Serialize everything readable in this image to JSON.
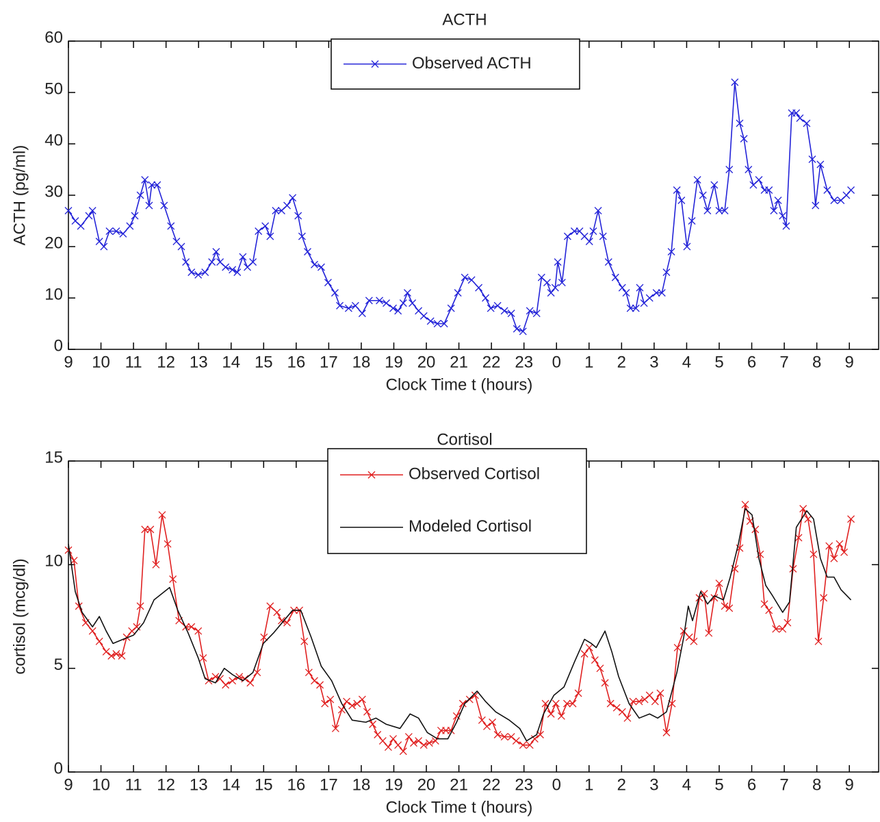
{
  "chart_data": [
    {
      "type": "line",
      "title": "ACTH",
      "xlabel": "Clock Time t (hours)",
      "ylabel": "ACTH (pg/ml)",
      "xlim": [
        0,
        24.9
      ],
      "ylim": [
        0,
        60
      ],
      "xticks": [
        {
          "value": 0,
          "label": "9"
        },
        {
          "value": 1,
          "label": "10"
        },
        {
          "value": 2,
          "label": "11"
        },
        {
          "value": 3,
          "label": "12"
        },
        {
          "value": 4,
          "label": "13"
        },
        {
          "value": 5,
          "label": "14"
        },
        {
          "value": 6,
          "label": "15"
        },
        {
          "value": 7,
          "label": "16"
        },
        {
          "value": 8,
          "label": "17"
        },
        {
          "value": 9,
          "label": "18"
        },
        {
          "value": 10,
          "label": "19"
        },
        {
          "value": 11,
          "label": "20"
        },
        {
          "value": 12,
          "label": "21"
        },
        {
          "value": 13,
          "label": "22"
        },
        {
          "value": 14,
          "label": "23"
        },
        {
          "value": 15,
          "label": "0"
        },
        {
          "value": 16,
          "label": "1"
        },
        {
          "value": 17,
          "label": "2"
        },
        {
          "value": 18,
          "label": "3"
        },
        {
          "value": 19,
          "label": "4"
        },
        {
          "value": 20,
          "label": "5"
        },
        {
          "value": 21,
          "label": "6"
        },
        {
          "value": 22,
          "label": "7"
        },
        {
          "value": 23,
          "label": "8"
        },
        {
          "value": 24,
          "label": "9"
        }
      ],
      "yticks": [
        0,
        10,
        20,
        30,
        40,
        50,
        60
      ],
      "series": [
        {
          "name": "Observed ACTH",
          "color": "#2323d8",
          "marker": "x",
          "x": [
            0,
            0.21,
            0.38,
            0.63,
            0.74,
            0.95,
            1.09,
            1.26,
            1.47,
            1.68,
            1.89,
            2.04,
            2.21,
            2.35,
            2.48,
            2.56,
            2.73,
            2.94,
            3.15,
            3.32,
            3.47,
            3.61,
            3.78,
            3.99,
            4.2,
            4.41,
            4.54,
            4.66,
            4.83,
            5.04,
            5.19,
            5.36,
            5.5,
            5.67,
            5.84,
            6.05,
            6.2,
            6.37,
            6.55,
            6.72,
            6.89,
            7.06,
            7.18,
            7.35,
            7.56,
            7.77,
            7.98,
            8.19,
            8.34,
            8.61,
            8.82,
            9.03,
            9.24,
            9.56,
            9.77,
            9.98,
            10.13,
            10.29,
            10.42,
            10.57,
            10.76,
            10.92,
            11.13,
            11.34,
            11.55,
            11.76,
            11.97,
            12.18,
            12.39,
            12.61,
            12.82,
            12.98,
            13.19,
            13.4,
            13.61,
            13.78,
            13.97,
            14.18,
            14.39,
            14.54,
            14.71,
            14.83,
            14.96,
            15.04,
            15.17,
            15.34,
            15.55,
            15.71,
            15.86,
            16.01,
            16.13,
            16.28,
            16.43,
            16.6,
            16.81,
            17.02,
            17.14,
            17.27,
            17.44,
            17.56,
            17.69,
            17.86,
            18.07,
            18.24,
            18.38,
            18.53,
            18.7,
            18.84,
            19.01,
            19.16,
            19.33,
            19.5,
            19.64,
            19.85,
            20,
            20.17,
            20.31,
            20.48,
            20.63,
            20.76,
            20.9,
            21.05,
            21.22,
            21.39,
            21.53,
            21.68,
            21.81,
            21.95,
            22.06,
            22.23,
            22.37,
            22.48,
            22.69,
            22.86,
            22.96,
            23.11,
            23.32,
            23.53,
            23.74,
            23.91,
            24.05
          ],
          "values": [
            27,
            25,
            24,
            26,
            27,
            21,
            20,
            23,
            23,
            22.5,
            24,
            26,
            30,
            33,
            28,
            32,
            32,
            28,
            24,
            21,
            20,
            17,
            15,
            14.5,
            15,
            17,
            19,
            17,
            16,
            15.5,
            15,
            18,
            16,
            17,
            23,
            24,
            22,
            27,
            27,
            28,
            29.5,
            26,
            22,
            19,
            16.5,
            16,
            13,
            11,
            8.5,
            8,
            8.5,
            7,
            9.5,
            9.5,
            9,
            8,
            7.5,
            9,
            11,
            9,
            7.5,
            6.5,
            5.5,
            5,
            5,
            8,
            11,
            14,
            13.5,
            12,
            10,
            8,
            8.5,
            7.5,
            7,
            4,
            3.5,
            7.5,
            7,
            14,
            13,
            11,
            12,
            17,
            13,
            22,
            23,
            23,
            22,
            21,
            23,
            27,
            22,
            17,
            14,
            12,
            11,
            8,
            8,
            12,
            9,
            10,
            11,
            11,
            15,
            19,
            31,
            29,
            20,
            25,
            33,
            30,
            27,
            32,
            27,
            27,
            35,
            52,
            44,
            41,
            35,
            32,
            33,
            31,
            31,
            27,
            29,
            26,
            24,
            46,
            46,
            45,
            44,
            37,
            28,
            36,
            31,
            29,
            29,
            30,
            31
          ]
        }
      ]
    },
    {
      "type": "line",
      "title": "Cortisol",
      "xlabel": "Clock Time t (hours)",
      "ylabel": "cortisol (mcg/dl)",
      "xlim": [
        0,
        24.9
      ],
      "ylim": [
        0,
        15
      ],
      "xticks": [
        {
          "value": 0,
          "label": "9"
        },
        {
          "value": 1,
          "label": "10"
        },
        {
          "value": 2,
          "label": "11"
        },
        {
          "value": 3,
          "label": "12"
        },
        {
          "value": 4,
          "label": "13"
        },
        {
          "value": 5,
          "label": "14"
        },
        {
          "value": 6,
          "label": "15"
        },
        {
          "value": 7,
          "label": "16"
        },
        {
          "value": 8,
          "label": "17"
        },
        {
          "value": 9,
          "label": "18"
        },
        {
          "value": 10,
          "label": "19"
        },
        {
          "value": 11,
          "label": "20"
        },
        {
          "value": 12,
          "label": "21"
        },
        {
          "value": 13,
          "label": "22"
        },
        {
          "value": 14,
          "label": "23"
        },
        {
          "value": 15,
          "label": "0"
        },
        {
          "value": 16,
          "label": "1"
        },
        {
          "value": 17,
          "label": "2"
        },
        {
          "value": 18,
          "label": "3"
        },
        {
          "value": 19,
          "label": "4"
        },
        {
          "value": 20,
          "label": "5"
        },
        {
          "value": 21,
          "label": "6"
        },
        {
          "value": 22,
          "label": "7"
        },
        {
          "value": 23,
          "label": "8"
        },
        {
          "value": 24,
          "label": "9"
        }
      ],
      "yticks": [
        0,
        5,
        10,
        15
      ],
      "series": [
        {
          "name": "Observed Cortisol",
          "color": "#e02020",
          "marker": "x",
          "x": [
            0,
            0.17,
            0.32,
            0.53,
            0.74,
            0.95,
            1.16,
            1.32,
            1.47,
            1.64,
            1.79,
            1.95,
            2.1,
            2.21,
            2.35,
            2.52,
            2.69,
            2.88,
            3.05,
            3.21,
            3.4,
            3.61,
            3.78,
            3.99,
            4.14,
            4.31,
            4.52,
            4.66,
            4.83,
            5.04,
            5.25,
            5.42,
            5.59,
            5.8,
            6.01,
            6.2,
            6.41,
            6.55,
            6.72,
            6.93,
            7.1,
            7.25,
            7.39,
            7.56,
            7.73,
            7.88,
            8.05,
            8.21,
            8.4,
            8.55,
            8.72,
            8.87,
            9.03,
            9.18,
            9.35,
            9.5,
            9.66,
            9.83,
            9.98,
            10.13,
            10.29,
            10.46,
            10.61,
            10.76,
            10.92,
            11.09,
            11.28,
            11.45,
            11.6,
            11.76,
            11.93,
            12.12,
            12.33,
            12.5,
            12.71,
            12.86,
            13.03,
            13.19,
            13.4,
            13.61,
            13.76,
            13.97,
            14.18,
            14.33,
            14.5,
            14.66,
            14.83,
            14.98,
            15.15,
            15.32,
            15.5,
            15.67,
            15.86,
            16.01,
            16.18,
            16.34,
            16.49,
            16.66,
            16.85,
            17.02,
            17.18,
            17.35,
            17.54,
            17.71,
            17.86,
            18.03,
            18.19,
            18.38,
            18.55,
            18.72,
            18.91,
            19.08,
            19.22,
            19.39,
            19.54,
            19.68,
            19.85,
            20,
            20.17,
            20.31,
            20.48,
            20.63,
            20.8,
            20.95,
            21.11,
            21.26,
            21.39,
            21.53,
            21.74,
            21.95,
            22.1,
            22.27,
            22.44,
            22.58,
            22.73,
            22.9,
            23.05,
            23.21,
            23.38,
            23.53,
            23.7,
            23.84,
            24.05
          ],
          "values": [
            10.7,
            10.2,
            8,
            7.2,
            6.8,
            6.3,
            5.8,
            5.6,
            5.7,
            5.6,
            6.5,
            6.8,
            7,
            8,
            11.7,
            11.7,
            10,
            12.4,
            11,
            9.3,
            7.3,
            7,
            7,
            6.8,
            5.5,
            4.4,
            4.6,
            4.5,
            4.2,
            4.4,
            4.6,
            4.5,
            4.3,
            4.8,
            6.5,
            8,
            7.7,
            7.3,
            7.2,
            7.8,
            7.8,
            6.3,
            4.8,
            4.4,
            4.2,
            3.3,
            3.5,
            2.1,
            3,
            3.4,
            3.2,
            3.3,
            3.5,
            2.9,
            2.3,
            1.8,
            1.5,
            1.2,
            1.6,
            1.3,
            1.0,
            1.7,
            1.4,
            1.5,
            1.3,
            1.4,
            1.5,
            2,
            2,
            2,
            2.7,
            3.3,
            3.5,
            3.7,
            2.5,
            2.2,
            2.4,
            1.8,
            1.7,
            1.7,
            1.5,
            1.3,
            1.3,
            1.6,
            1.8,
            3.3,
            2.8,
            3.3,
            2.7,
            3.3,
            3.3,
            3.8,
            5.7,
            6,
            5.4,
            5,
            4.3,
            3.3,
            3.1,
            2.9,
            2.6,
            3.4,
            3.4,
            3.5,
            3.7,
            3.4,
            3.8,
            1.9,
            3.3,
            6,
            6.8,
            6.5,
            6.3,
            8.4,
            8.6,
            6.7,
            8.4,
            9.1,
            8,
            7.9,
            9.8,
            10.8,
            12.9,
            12.1,
            11.7,
            10.5,
            8.1,
            7.8,
            6.9,
            6.9,
            7.2,
            9.8,
            11.3,
            12.7,
            12.2,
            10.5,
            6.3,
            8.4,
            10.9,
            10.3,
            11,
            10.6,
            12.2
          ]
        },
        {
          "name": "Modeled Cortisol",
          "color": "#111111",
          "marker": "none",
          "x": [
            0,
            0.21,
            0.42,
            0.74,
            0.95,
            1.16,
            1.37,
            1.68,
            2,
            2.31,
            2.63,
            3.11,
            3.36,
            3.68,
            3.99,
            4.2,
            4.52,
            4.79,
            5.04,
            5.36,
            5.67,
            5.99,
            6.3,
            6.62,
            6.89,
            7.14,
            7.46,
            7.77,
            8.09,
            8.4,
            8.72,
            9.14,
            9.45,
            9.77,
            10.19,
            10.5,
            10.76,
            11.03,
            11.34,
            11.66,
            11.93,
            12.18,
            12.56,
            12.82,
            13.13,
            13.55,
            13.87,
            14.08,
            14.39,
            14.6,
            14.92,
            15.23,
            15.55,
            15.86,
            16.07,
            16.22,
            16.49,
            16.7,
            16.91,
            17.23,
            17.54,
            17.86,
            18.11,
            18.38,
            18.7,
            18.91,
            19.05,
            19.18,
            19.43,
            19.64,
            19.85,
            20.13,
            20.34,
            20.59,
            20.8,
            21.01,
            21.22,
            21.43,
            21.64,
            21.95,
            22.16,
            22.37,
            22.69,
            22.9,
            23.11,
            23.32,
            23.53,
            23.74,
            24.05
          ],
          "values": [
            11,
            8.7,
            7.7,
            7,
            7.5,
            6.8,
            6.2,
            6.4,
            6.6,
            7.2,
            8.3,
            8.9,
            7.8,
            6.7,
            5.5,
            4.5,
            4.3,
            5,
            4.7,
            4.4,
            4.8,
            6.2,
            6.7,
            7.3,
            7.8,
            7.8,
            6.5,
            5.1,
            4.4,
            3.3,
            2.5,
            2.4,
            2.6,
            2.3,
            2.1,
            2.8,
            2.6,
            1.9,
            1.6,
            1.6,
            2.4,
            3.3,
            3.9,
            3.4,
            2.9,
            2.5,
            2.1,
            1.5,
            1.8,
            2.8,
            3.7,
            4.1,
            5.3,
            6.4,
            6.2,
            6,
            6.8,
            5.8,
            4.6,
            3.3,
            2.6,
            2.8,
            2.6,
            2.9,
            4.8,
            6.5,
            8,
            7.3,
            8.7,
            8.1,
            8.5,
            8.3,
            9.4,
            11,
            12.7,
            12.4,
            10.3,
            9,
            8.5,
            7.7,
            8.2,
            11.8,
            12.6,
            12.2,
            10.3,
            9.4,
            9.4,
            8.8,
            8.3
          ]
        }
      ]
    }
  ]
}
